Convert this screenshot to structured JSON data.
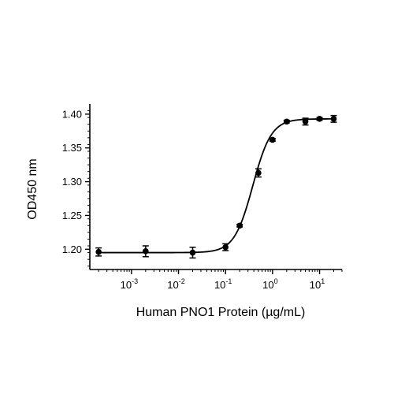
{
  "chart_data": {
    "type": "scatter",
    "xscale": "log",
    "xlabel": "Human PNO1 Protein (µg/mL)",
    "ylabel": "OD450 nm",
    "xlim": [
      0.00013,
      30
    ],
    "ylim": [
      1.17,
      1.415
    ],
    "x_ticks": [
      {
        "value": 0.001,
        "base": "10",
        "exp": "-3"
      },
      {
        "value": 0.01,
        "base": "10",
        "exp": "-2"
      },
      {
        "value": 0.1,
        "base": "10",
        "exp": "-1"
      },
      {
        "value": 1,
        "base": "10",
        "exp": "0"
      },
      {
        "value": 10,
        "base": "10",
        "exp": "1"
      }
    ],
    "y_ticks": [
      {
        "value": 1.2,
        "label": "1.20"
      },
      {
        "value": 1.25,
        "label": "1.25"
      },
      {
        "value": 1.3,
        "label": "1.30"
      },
      {
        "value": 1.35,
        "label": "1.35"
      },
      {
        "value": 1.4,
        "label": "1.40"
      }
    ],
    "points": [
      {
        "x": 0.0002,
        "y": 1.196,
        "err": 0.006
      },
      {
        "x": 0.002,
        "y": 1.197,
        "err": 0.008
      },
      {
        "x": 0.02,
        "y": 1.195,
        "err": 0.008
      },
      {
        "x": 0.1,
        "y": 1.203,
        "err": 0.005
      },
      {
        "x": 0.2,
        "y": 1.235,
        "err": 0.002
      },
      {
        "x": 0.5,
        "y": 1.313,
        "err": 0.006
      },
      {
        "x": 1,
        "y": 1.362,
        "err": 0.002
      },
      {
        "x": 2,
        "y": 1.389,
        "err": 0.002
      },
      {
        "x": 5,
        "y": 1.389,
        "err": 0.005
      },
      {
        "x": 10,
        "y": 1.393,
        "err": 0.002
      },
      {
        "x": 20,
        "y": 1.393,
        "err": 0.005
      }
    ],
    "fit": {
      "bottom": 1.195,
      "top": 1.393,
      "ec50": 0.38,
      "hill": 2.2
    },
    "grid": false,
    "legend": "none"
  }
}
